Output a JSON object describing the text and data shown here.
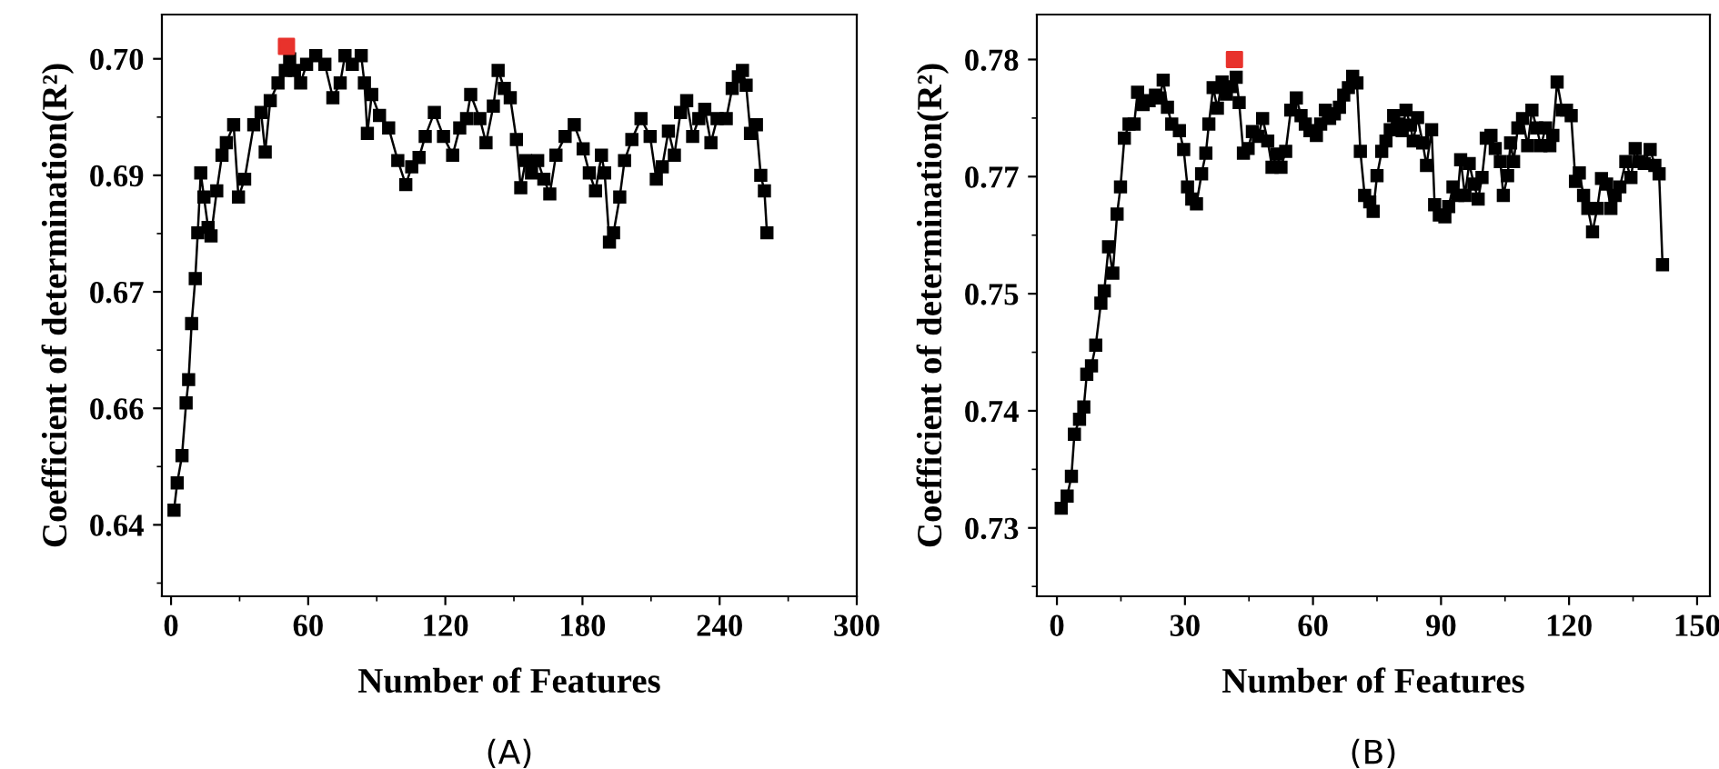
{
  "chart_data": [
    {
      "type": "line",
      "xlabel": "Number of Features",
      "ylabel": "Coefficient of determination(R²)",
      "annotations": [
        "(A)"
      ],
      "xlim": [
        -4,
        300
      ],
      "xticks": [
        0,
        60,
        120,
        180,
        240,
        300
      ],
      "ylim": [
        0.6308,
        0.7057
      ],
      "yticks": [
        0.64,
        {
          "value": 0.655,
          "label": "0.66"
        },
        0.67,
        {
          "value": 0.685,
          "label": "0.69"
        },
        {
          "value": 0.7,
          "label": "0.70"
        }
      ],
      "marker": "square",
      "grid": false,
      "legend": false,
      "series": [
        {
          "type": "line",
          "color": "#000000",
          "x": [
            1.3,
            2.7,
            4.8,
            6.6,
            7.7,
            9.0,
            10.6,
            11.7,
            13.0,
            14.4,
            16.2,
            17.5,
            20.0,
            22.3,
            24.2,
            27.4,
            29.5,
            32.2,
            36.2,
            39.4,
            41.2,
            43.4,
            46.8,
            50.0,
            51.9,
            54.0,
            56.7,
            59.3,
            63.3,
            67.3,
            70.8,
            74.0,
            76.1,
            79.3,
            83.2,
            84.6,
            85.9,
            87.8,
            91.2,
            95.2,
            99.2,
            102.7,
            105.3,
            108.5,
            111.2,
            115.2,
            119.2,
            123.2,
            126.3,
            129.3,
            131.1,
            135.1,
            137.8,
            141.0,
            143.1,
            145.8,
            148.4,
            151.1,
            153.0,
            155.1,
            157.7,
            160.4,
            163.1,
            165.7,
            168.4,
            172.4,
            176.4,
            180.3,
            183.0,
            185.7,
            188.3,
            189.7,
            191.8,
            193.6,
            196.3,
            198.4,
            201.6,
            205.6,
            209.6,
            212.3,
            214.9,
            217.6,
            220.2,
            222.9,
            225.6,
            228.2,
            230.9,
            233.5,
            236.2,
            238.9,
            242.9,
            245.5,
            248.2,
            250.0,
            251.6,
            253.5,
            256.1,
            258.0,
            259.6,
            260.7
          ],
          "values": [
            0.6419,
            0.6454,
            0.6489,
            0.6557,
            0.6587,
            0.6659,
            0.6717,
            0.6776,
            0.6853,
            0.6822,
            0.6783,
            0.6772,
            0.683,
            0.6876,
            0.6892,
            0.6915,
            0.6822,
            0.6845,
            0.6915,
            0.6931,
            0.688,
            0.6946,
            0.6969,
            0.6985,
            0.7,
            0.6985,
            0.6969,
            0.6993,
            0.7004,
            0.6993,
            0.695,
            0.6969,
            0.7004,
            0.6993,
            0.7004,
            0.6969,
            0.6904,
            0.6954,
            0.6927,
            0.6911,
            0.6869,
            0.6838,
            0.6861,
            0.6873,
            0.69,
            0.6931,
            0.69,
            0.6876,
            0.6911,
            0.6923,
            0.6954,
            0.6923,
            0.6892,
            0.6939,
            0.6985,
            0.6962,
            0.695,
            0.6896,
            0.6834,
            0.6869,
            0.6853,
            0.6869,
            0.6845,
            0.6826,
            0.6876,
            0.69,
            0.6915,
            0.6884,
            0.6853,
            0.683,
            0.6876,
            0.6853,
            0.6764,
            0.6776,
            0.6822,
            0.6869,
            0.6896,
            0.6923,
            0.69,
            0.6845,
            0.6861,
            0.6907,
            0.6876,
            0.6931,
            0.6946,
            0.69,
            0.6923,
            0.6935,
            0.6892,
            0.6923,
            0.6923,
            0.6962,
            0.6977,
            0.6985,
            0.6966,
            0.6904,
            0.6915,
            0.685,
            0.683,
            0.6776
          ]
        },
        {
          "type": "scatter",
          "color": "#e8322c",
          "x": [
            50.5
          ],
          "values": [
            0.7016
          ]
        }
      ]
    },
    {
      "type": "line",
      "xlabel": "Number of Features",
      "ylabel": "Coefficient of determination(R²)",
      "annotations": [
        "(B)"
      ],
      "xlim": [
        -4.7,
        153
      ],
      "xticks": [
        0,
        30,
        60,
        90,
        120,
        150
      ],
      "ylim": [
        0.7227,
        0.7848
      ],
      "yticks": [
        0.73,
        {
          "value": 0.7425,
          "label": "0.74"
        },
        {
          "value": 0.755,
          "label": "0.75"
        },
        {
          "value": 0.7675,
          "label": "0.77"
        },
        0.78
      ],
      "marker": "square",
      "grid": false,
      "legend": false,
      "series": [
        {
          "type": "line",
          "color": "#000000",
          "x": [
            1.0,
            2.4,
            3.4,
            4.1,
            5.3,
            6.3,
            7.0,
            8.1,
            9.1,
            10.3,
            11.1,
            12.1,
            13.1,
            14.1,
            14.9,
            15.8,
            16.9,
            18.1,
            18.9,
            20.2,
            21.6,
            23.1,
            24.1,
            24.9,
            25.9,
            26.9,
            28.7,
            29.7,
            30.6,
            31.6,
            32.7,
            33.9,
            34.9,
            35.6,
            36.6,
            37.6,
            38.7,
            39.7,
            40.8,
            42.0,
            42.7,
            43.7,
            44.8,
            45.8,
            47.2,
            48.2,
            49.4,
            50.4,
            51.5,
            52.5,
            53.6,
            54.8,
            56.1,
            57.2,
            58.2,
            59.3,
            60.8,
            61.8,
            62.9,
            63.9,
            65.0,
            66.2,
            67.2,
            68.3,
            69.3,
            70.3,
            71.1,
            72.1,
            73.3,
            74.1,
            75.0,
            76.1,
            77.1,
            78.1,
            78.9,
            80.1,
            80.9,
            81.8,
            82.8,
            83.5,
            84.5,
            85.7,
            86.6,
            87.8,
            88.5,
            89.6,
            90.9,
            91.8,
            92.8,
            93.9,
            94.6,
            95.6,
            96.6,
            97.7,
            98.7,
            99.6,
            100.6,
            101.7,
            102.7,
            103.9,
            104.6,
            105.6,
            106.3,
            107.0,
            108.0,
            109.1,
            110.3,
            111.3,
            112.4,
            113.4,
            114.5,
            115.5,
            116.2,
            117.2,
            118.4,
            119.4,
            120.5,
            121.5,
            122.4,
            123.4,
            124.4,
            125.5,
            126.6,
            127.6,
            128.8,
            129.8,
            130.8,
            131.9,
            133.3,
            134.5,
            135.5,
            136.5,
            137.6,
            139.0,
            140.1,
            141.1,
            141.9
          ],
          "values": [
            0.7321,
            0.7334,
            0.7355,
            0.74,
            0.7416,
            0.7429,
            0.7464,
            0.7473,
            0.7495,
            0.754,
            0.7553,
            0.76,
            0.7572,
            0.7635,
            0.7664,
            0.7716,
            0.7731,
            0.7731,
            0.7765,
            0.7752,
            0.7756,
            0.7762,
            0.7759,
            0.7778,
            0.7749,
            0.7731,
            0.7724,
            0.7704,
            0.7664,
            0.7651,
            0.7646,
            0.7678,
            0.77,
            0.7731,
            0.777,
            0.7748,
            0.7776,
            0.7763,
            0.7771,
            0.7781,
            0.7754,
            0.77,
            0.7705,
            0.7723,
            0.7718,
            0.7737,
            0.7713,
            0.7685,
            0.7699,
            0.7685,
            0.7702,
            0.7746,
            0.7759,
            0.774,
            0.7731,
            0.7724,
            0.7719,
            0.7731,
            0.7746,
            0.7737,
            0.7742,
            0.7749,
            0.7762,
            0.777,
            0.7782,
            0.7775,
            0.7702,
            0.7655,
            0.7648,
            0.7638,
            0.7676,
            0.7702,
            0.7713,
            0.7725,
            0.774,
            0.7731,
            0.7724,
            0.7746,
            0.773,
            0.7713,
            0.7738,
            0.7711,
            0.7687,
            0.7725,
            0.7645,
            0.7634,
            0.7632,
            0.7643,
            0.7664,
            0.7655,
            0.7693,
            0.7655,
            0.7689,
            0.7667,
            0.7651,
            0.7674,
            0.7716,
            0.7719,
            0.7705,
            0.7691,
            0.7655,
            0.7676,
            0.7711,
            0.7691,
            0.7727,
            0.7737,
            0.7708,
            0.7746,
            0.7727,
            0.7708,
            0.7727,
            0.7708,
            0.7719,
            0.7776,
            0.7746,
            0.7746,
            0.774,
            0.767,
            0.7679,
            0.7655,
            0.7641,
            0.7616,
            0.7641,
            0.7673,
            0.7667,
            0.7641,
            0.7655,
            0.7664,
            0.7691,
            0.7674,
            0.7705,
            0.7691,
            0.7689,
            0.7704,
            0.7687,
            0.7678,
            0.7581
          ]
        },
        {
          "type": "scatter",
          "color": "#e8322c",
          "x": [
            41.6
          ],
          "values": [
            0.78
          ]
        }
      ]
    }
  ]
}
